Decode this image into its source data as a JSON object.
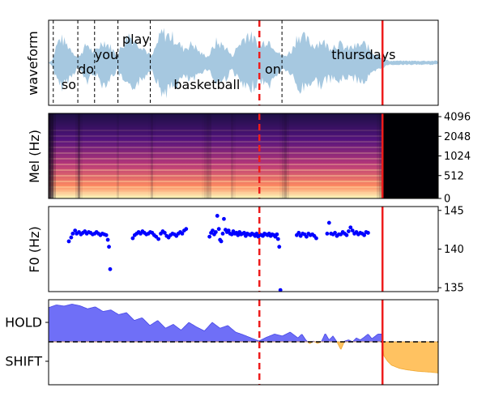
{
  "chart_data": [
    {
      "type": "area",
      "panel": "waveform",
      "ylabel": "waveform",
      "time_range": [
        0,
        1
      ],
      "words": [
        {
          "text": "so",
          "t": 0.033
        },
        {
          "text": "do",
          "t": 0.075
        },
        {
          "text": "you",
          "t": 0.118
        },
        {
          "text": "play",
          "t": 0.189
        },
        {
          "text": "basketball",
          "t": 0.321
        },
        {
          "text": "on",
          "t": 0.555
        },
        {
          "text": "thursdays",
          "t": 0.726
        }
      ],
      "word_boundaries": [
        0.012,
        0.075,
        0.118,
        0.178,
        0.261,
        0.599
      ],
      "envelope": [
        [
          0.0,
          0.0
        ],
        [
          0.01,
          0.1
        ],
        [
          0.02,
          0.55
        ],
        [
          0.03,
          0.78
        ],
        [
          0.045,
          0.6
        ],
        [
          0.06,
          0.4
        ],
        [
          0.075,
          0.15
        ],
        [
          0.085,
          0.35
        ],
        [
          0.1,
          0.6
        ],
        [
          0.115,
          0.3
        ],
        [
          0.125,
          0.45
        ],
        [
          0.14,
          0.7
        ],
        [
          0.155,
          0.55
        ],
        [
          0.175,
          0.25
        ],
        [
          0.19,
          0.55
        ],
        [
          0.205,
          0.9
        ],
        [
          0.22,
          0.7
        ],
        [
          0.24,
          0.55
        ],
        [
          0.255,
          0.3
        ],
        [
          0.265,
          0.2
        ],
        [
          0.29,
          0.95
        ],
        [
          0.32,
          0.8
        ],
        [
          0.345,
          0.45
        ],
        [
          0.37,
          0.6
        ],
        [
          0.39,
          0.3
        ],
        [
          0.41,
          0.2
        ],
        [
          0.43,
          0.65
        ],
        [
          0.455,
          0.5
        ],
        [
          0.47,
          0.2
        ],
        [
          0.49,
          0.6
        ],
        [
          0.51,
          0.92
        ],
        [
          0.53,
          0.7
        ],
        [
          0.545,
          0.55
        ],
        [
          0.56,
          0.75
        ],
        [
          0.575,
          0.6
        ],
        [
          0.59,
          0.3
        ],
        [
          0.605,
          0.2
        ],
        [
          0.625,
          0.4
        ],
        [
          0.64,
          0.9
        ],
        [
          0.66,
          0.75
        ],
        [
          0.68,
          0.55
        ],
        [
          0.7,
          0.7
        ],
        [
          0.72,
          0.5
        ],
        [
          0.745,
          0.6
        ],
        [
          0.765,
          0.45
        ],
        [
          0.785,
          0.5
        ],
        [
          0.81,
          0.6
        ],
        [
          0.83,
          0.35
        ],
        [
          0.85,
          0.2
        ],
        [
          0.865,
          0.1
        ],
        [
          0.875,
          0.06
        ],
        [
          1.0,
          0.06
        ]
      ],
      "markers": {
        "boundary_dashed": 0.541,
        "current_solid": 0.857
      },
      "color": "#a6c8e0"
    },
    {
      "type": "heatmap",
      "panel": "mel_spectrogram",
      "ylabel": "Mel (Hz)",
      "y_ticks": [
        "0",
        "512",
        "1024",
        "2048",
        "4096"
      ],
      "signal_end": 0.857,
      "colormap": "magma"
    },
    {
      "type": "scatter",
      "panel": "f0",
      "ylabel": "F0 (Hz)",
      "ylim": [
        134.5,
        145.5
      ],
      "y_ticks": [
        135,
        140,
        145
      ],
      "points": [
        [
          0.052,
          141.0
        ],
        [
          0.058,
          141.5
        ],
        [
          0.062,
          142.0
        ],
        [
          0.068,
          142.4
        ],
        [
          0.072,
          142.0
        ],
        [
          0.078,
          142.2
        ],
        [
          0.083,
          141.9
        ],
        [
          0.088,
          142.1
        ],
        [
          0.093,
          142.3
        ],
        [
          0.098,
          142.0
        ],
        [
          0.103,
          142.2
        ],
        [
          0.108,
          142.1
        ],
        [
          0.113,
          141.9
        ],
        [
          0.118,
          142.0
        ],
        [
          0.123,
          142.2
        ],
        [
          0.128,
          142.0
        ],
        [
          0.133,
          141.8
        ],
        [
          0.138,
          142.0
        ],
        [
          0.143,
          141.9
        ],
        [
          0.148,
          141.8
        ],
        [
          0.152,
          141.2
        ],
        [
          0.155,
          140.3
        ],
        [
          0.158,
          137.4
        ],
        [
          0.216,
          141.4
        ],
        [
          0.221,
          141.8
        ],
        [
          0.226,
          142.0
        ],
        [
          0.231,
          142.2
        ],
        [
          0.236,
          142.0
        ],
        [
          0.241,
          142.3
        ],
        [
          0.246,
          142.1
        ],
        [
          0.251,
          141.9
        ],
        [
          0.256,
          142.0
        ],
        [
          0.261,
          142.2
        ],
        [
          0.266,
          142.1
        ],
        [
          0.271,
          141.8
        ],
        [
          0.276,
          141.6
        ],
        [
          0.282,
          141.3
        ],
        [
          0.288,
          142.0
        ],
        [
          0.293,
          142.3
        ],
        [
          0.298,
          142.1
        ],
        [
          0.303,
          141.7
        ],
        [
          0.308,
          141.5
        ],
        [
          0.313,
          141.8
        ],
        [
          0.318,
          142.0
        ],
        [
          0.323,
          141.9
        ],
        [
          0.328,
          141.7
        ],
        [
          0.333,
          142.0
        ],
        [
          0.338,
          142.2
        ],
        [
          0.343,
          142.0
        ],
        [
          0.348,
          142.4
        ],
        [
          0.353,
          142.6
        ],
        [
          0.413,
          141.6
        ],
        [
          0.417,
          142.1
        ],
        [
          0.421,
          142.4
        ],
        [
          0.425,
          141.9
        ],
        [
          0.429,
          142.2
        ],
        [
          0.433,
          144.3
        ],
        [
          0.437,
          142.6
        ],
        [
          0.44,
          141.2
        ],
        [
          0.443,
          141.0
        ],
        [
          0.447,
          142.0
        ],
        [
          0.45,
          143.9
        ],
        [
          0.454,
          142.5
        ],
        [
          0.458,
          142.2
        ],
        [
          0.462,
          142.4
        ],
        [
          0.466,
          142.0
        ],
        [
          0.47,
          141.9
        ],
        [
          0.474,
          142.3
        ],
        [
          0.478,
          142.0
        ],
        [
          0.482,
          142.1
        ],
        [
          0.486,
          141.8
        ],
        [
          0.49,
          142.2
        ],
        [
          0.494,
          141.9
        ],
        [
          0.498,
          142.0
        ],
        [
          0.502,
          142.1
        ],
        [
          0.506,
          141.7
        ],
        [
          0.51,
          142.0
        ],
        [
          0.514,
          141.9
        ],
        [
          0.518,
          141.8
        ],
        [
          0.522,
          142.0
        ],
        [
          0.526,
          141.9
        ],
        [
          0.53,
          141.7
        ],
        [
          0.534,
          142.0
        ],
        [
          0.538,
          141.6
        ],
        [
          0.542,
          141.9
        ],
        [
          0.546,
          141.8
        ],
        [
          0.55,
          141.7
        ],
        [
          0.554,
          142.0
        ],
        [
          0.558,
          141.9
        ],
        [
          0.562,
          141.8
        ],
        [
          0.566,
          142.0
        ],
        [
          0.57,
          141.7
        ],
        [
          0.574,
          141.9
        ],
        [
          0.578,
          141.8
        ],
        [
          0.582,
          141.6
        ],
        [
          0.586,
          141.9
        ],
        [
          0.589,
          141.3
        ],
        [
          0.592,
          140.3
        ],
        [
          0.595,
          134.7
        ],
        [
          0.637,
          141.8
        ],
        [
          0.642,
          142.1
        ],
        [
          0.647,
          141.7
        ],
        [
          0.652,
          142.0
        ],
        [
          0.657,
          141.9
        ],
        [
          0.662,
          141.6
        ],
        [
          0.667,
          142.0
        ],
        [
          0.672,
          141.8
        ],
        [
          0.677,
          141.9
        ],
        [
          0.682,
          141.7
        ],
        [
          0.687,
          141.4
        ],
        [
          0.715,
          142.0
        ],
        [
          0.72,
          143.4
        ],
        [
          0.725,
          142.0
        ],
        [
          0.73,
          141.9
        ],
        [
          0.735,
          142.1
        ],
        [
          0.74,
          141.7
        ],
        [
          0.745,
          141.9
        ],
        [
          0.75,
          141.9
        ],
        [
          0.755,
          142.2
        ],
        [
          0.76,
          142.0
        ],
        [
          0.765,
          141.8
        ],
        [
          0.77,
          142.3
        ],
        [
          0.775,
          142.8
        ],
        [
          0.78,
          142.4
        ],
        [
          0.785,
          142.0
        ],
        [
          0.79,
          142.2
        ],
        [
          0.795,
          141.9
        ],
        [
          0.8,
          142.1
        ],
        [
          0.805,
          142.0
        ],
        [
          0.81,
          141.8
        ],
        [
          0.815,
          142.2
        ],
        [
          0.82,
          142.1
        ]
      ],
      "color": "#0000ff"
    },
    {
      "type": "area",
      "panel": "turn_taking",
      "y_ticks": [
        "HOLD",
        "SHIFT"
      ],
      "ylim": [
        -1,
        1
      ],
      "hold_color": "#6f6ff7",
      "shift_color": "#ffc261",
      "values": [
        [
          0.0,
          0.88
        ],
        [
          0.02,
          0.95
        ],
        [
          0.04,
          0.92
        ],
        [
          0.06,
          0.97
        ],
        [
          0.08,
          0.93
        ],
        [
          0.1,
          0.85
        ],
        [
          0.12,
          0.9
        ],
        [
          0.14,
          0.78
        ],
        [
          0.16,
          0.82
        ],
        [
          0.18,
          0.7
        ],
        [
          0.2,
          0.75
        ],
        [
          0.22,
          0.55
        ],
        [
          0.24,
          0.62
        ],
        [
          0.26,
          0.42
        ],
        [
          0.28,
          0.55
        ],
        [
          0.3,
          0.35
        ],
        [
          0.32,
          0.45
        ],
        [
          0.34,
          0.3
        ],
        [
          0.36,
          0.5
        ],
        [
          0.38,
          0.38
        ],
        [
          0.4,
          0.28
        ],
        [
          0.42,
          0.5
        ],
        [
          0.44,
          0.35
        ],
        [
          0.46,
          0.42
        ],
        [
          0.48,
          0.25
        ],
        [
          0.5,
          0.18
        ],
        [
          0.52,
          0.1
        ],
        [
          0.54,
          0.02
        ],
        [
          0.56,
          0.12
        ],
        [
          0.58,
          0.2
        ],
        [
          0.6,
          0.15
        ],
        [
          0.62,
          0.25
        ],
        [
          0.64,
          0.1
        ],
        [
          0.65,
          0.2
        ],
        [
          0.66,
          0.05
        ],
        [
          0.67,
          -0.05
        ],
        [
          0.68,
          0.02
        ],
        [
          0.69,
          -0.04
        ],
        [
          0.7,
          0.0
        ],
        [
          0.71,
          0.22
        ],
        [
          0.72,
          0.05
        ],
        [
          0.73,
          0.15
        ],
        [
          0.74,
          0.0
        ],
        [
          0.75,
          -0.2
        ],
        [
          0.76,
          0.02
        ],
        [
          0.77,
          0.05
        ],
        [
          0.78,
          0.0
        ],
        [
          0.79,
          0.1
        ],
        [
          0.8,
          0.05
        ],
        [
          0.81,
          0.12
        ],
        [
          0.82,
          0.2
        ],
        [
          0.83,
          0.08
        ],
        [
          0.845,
          0.2
        ],
        [
          0.855,
          0.2
        ],
        [
          0.86,
          -0.35
        ],
        [
          0.87,
          -0.5
        ],
        [
          0.88,
          -0.6
        ],
        [
          0.9,
          -0.68
        ],
        [
          0.92,
          -0.72
        ],
        [
          0.95,
          -0.76
        ],
        [
          0.98,
          -0.78
        ],
        [
          1.0,
          -0.8
        ]
      ]
    }
  ]
}
